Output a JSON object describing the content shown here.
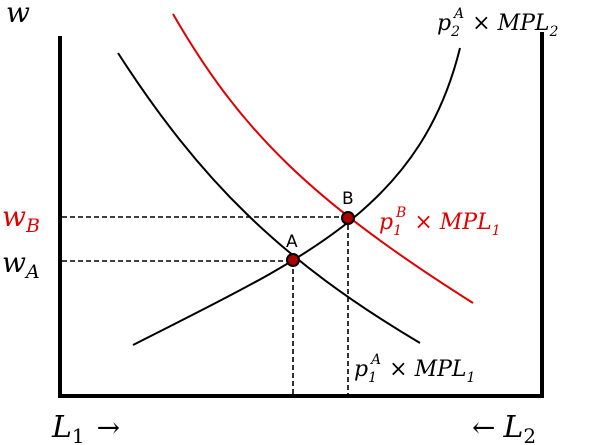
{
  "axes": {
    "y_axis_label": "w",
    "left_axis_label": {
      "var": "L",
      "sub": "1",
      "arrow": "→"
    },
    "right_axis_label": {
      "arrow": "←",
      "var": "L",
      "sub": "2"
    }
  },
  "wage_labels": {
    "w_b": {
      "var": "w",
      "sub": "B"
    },
    "w_a": {
      "var": "w",
      "sub": "A"
    }
  },
  "points": {
    "a": {
      "label": "A"
    },
    "b": {
      "label": "B"
    }
  },
  "curves": {
    "mpl2": {
      "p": "p",
      "sub": "2",
      "sup": "A",
      "times": "×",
      "mpl": "MPL",
      "mpl_sub": "2"
    },
    "mpl1_b": {
      "p": "p",
      "sub": "1",
      "sup": "B",
      "times": "×",
      "mpl": "MPL",
      "mpl_sub": "1"
    },
    "mpl1_a": {
      "p": "p",
      "sub": "1",
      "sup": "A",
      "times": "×",
      "mpl": "MPL",
      "mpl_sub": "1"
    }
  },
  "colors": {
    "black": "#000000",
    "red": "#e00000",
    "point_fill": "#b00000"
  }
}
